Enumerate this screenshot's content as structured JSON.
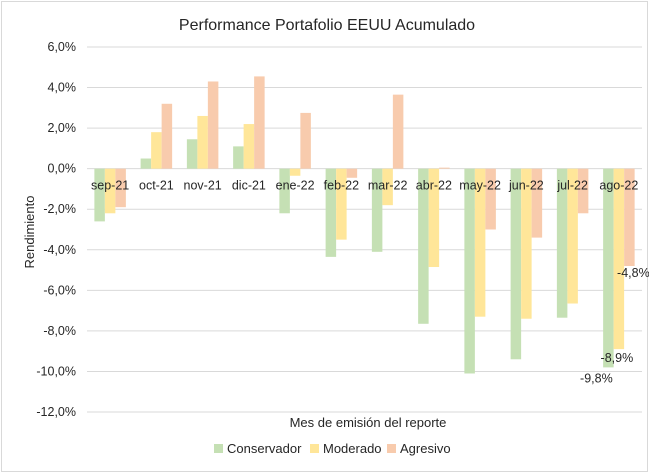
{
  "chart_data": {
    "type": "bar",
    "title": "Performance Portafolio EEUU Acumulado",
    "xlabel": "Mes de emisión del reporte",
    "ylabel": "Rendimiento",
    "ylim": [
      -12,
      6
    ],
    "yticks": [
      6,
      4,
      2,
      0,
      -2,
      -4,
      -6,
      -8,
      -10,
      -12
    ],
    "ytick_labels": [
      "6,0%",
      "4,0%",
      "2,0%",
      "0,0%",
      "-2,0%",
      "-4,0%",
      "-6,0%",
      "-8,0%",
      "-10,0%",
      "-12,0%"
    ],
    "categories": [
      "sep-21",
      "oct-21",
      "nov-21",
      "dic-21",
      "ene-22",
      "feb-22",
      "mar-22",
      "abr-22",
      "may-22",
      "jun-22",
      "jul-22",
      "ago-22"
    ],
    "series": [
      {
        "name": "Conservador",
        "color": "#c5e0b4",
        "values": [
          -2.6,
          0.5,
          1.45,
          1.1,
          -2.2,
          -4.35,
          -4.1,
          -7.65,
          -10.1,
          -9.4,
          -7.35,
          -9.8
        ]
      },
      {
        "name": "Moderado",
        "color": "#ffe699",
        "values": [
          -2.2,
          1.8,
          2.6,
          2.2,
          -0.35,
          -3.5,
          -1.8,
          -4.85,
          -7.3,
          -7.4,
          -6.65,
          -8.9
        ]
      },
      {
        "name": "Agresivo",
        "color": "#f8cbad",
        "values": [
          -1.9,
          3.2,
          4.3,
          4.55,
          2.75,
          -0.45,
          3.65,
          0.05,
          -3.0,
          -3.4,
          -2.2,
          -4.8
        ]
      }
    ],
    "data_labels": [
      {
        "series": "Agresivo",
        "category": "ago-22",
        "text": "-4,8%"
      },
      {
        "series": "Moderado",
        "category": "ago-22",
        "text": "-8,9%"
      },
      {
        "series": "Conservador",
        "category": "ago-22",
        "text": "-9,8%"
      }
    ],
    "legend_position": "bottom",
    "grid": true
  }
}
